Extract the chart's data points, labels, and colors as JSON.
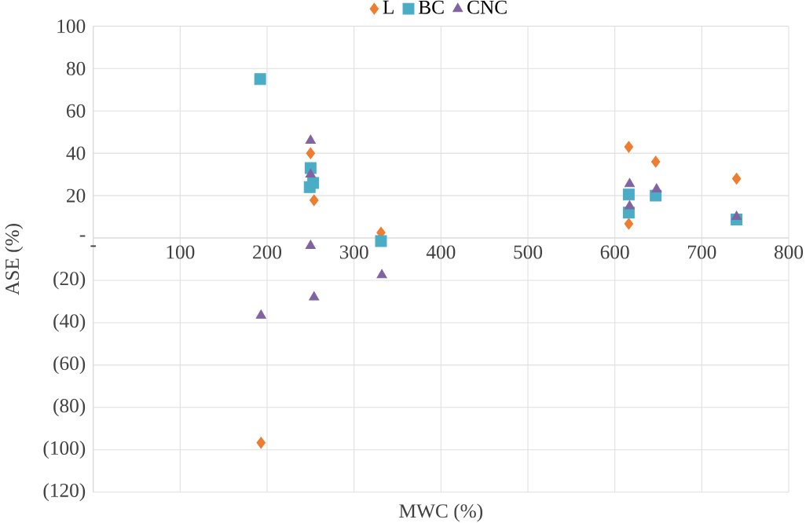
{
  "chart_data": {
    "type": "scatter",
    "xlabel": "MWC (%)",
    "ylabel": "ASE (%)",
    "xlim": [
      0,
      800
    ],
    "ylim": [
      -120,
      100
    ],
    "xticks": [
      {
        "value": 0,
        "label": "-"
      },
      100,
      200,
      300,
      400,
      500,
      600,
      700,
      800
    ],
    "yticks": [
      {
        "value": -120,
        "label": "(120)"
      },
      {
        "value": -100,
        "label": "(100)"
      },
      {
        "value": -80,
        "label": "(80)"
      },
      {
        "value": -60,
        "label": "(60)"
      },
      {
        "value": -40,
        "label": "(40)"
      },
      {
        "value": -20,
        "label": "(20)"
      },
      {
        "value": 0,
        "label": "-"
      },
      20,
      40,
      60,
      80,
      100
    ],
    "grid": true,
    "legend": "top",
    "series": [
      {
        "name": "L",
        "color": "#ED7D31",
        "marker": "diamond",
        "x": [
          250,
          252,
          254,
          331,
          193,
          616,
          647,
          740,
          616
        ],
        "values": [
          40,
          null,
          17.8,
          2.5,
          -96.7,
          43,
          36,
          28,
          6.7
        ]
      },
      {
        "name": "BC",
        "color": "#4BACC6",
        "marker": "square",
        "x": [
          192,
          250,
          253,
          249,
          331,
          616,
          616,
          647,
          740
        ],
        "values": [
          75,
          33,
          26,
          24,
          -1.5,
          20.5,
          12,
          20,
          8.7
        ]
      },
      {
        "name": "CNC",
        "color": "#8064A2",
        "marker": "triangle",
        "x": [
          250,
          250,
          250,
          254,
          193,
          332,
          617,
          617,
          648,
          740
        ],
        "values": [
          46,
          30,
          -3.7,
          -28,
          -36.6,
          -17.5,
          25.5,
          15,
          23,
          10
        ]
      }
    ]
  }
}
